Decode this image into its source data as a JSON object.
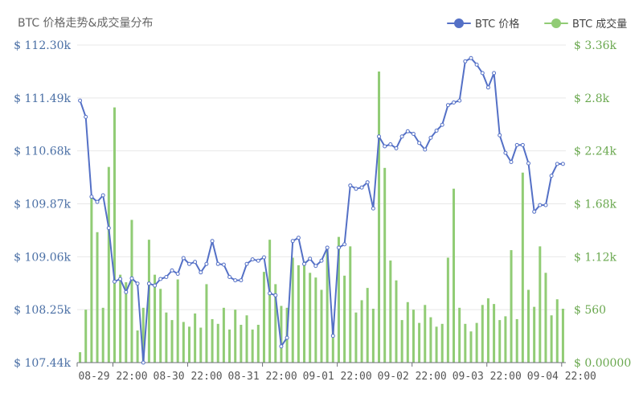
{
  "chart_data": {
    "type": "line+bar",
    "title": "BTC 价格走势&成交量分布",
    "legend": [
      {
        "name": "BTC 价格",
        "color": "#5470c6"
      },
      {
        "name": "BTC 成交量",
        "color": "#91cc75"
      }
    ],
    "legend_position": "top-right",
    "x_tick_labels": [
      "08-29 22:00",
      "08-30 22:00",
      "08-31 22:00",
      "09-01 22:00",
      "09-02 22:00",
      "09-03 22:00",
      "09-04 22:00"
    ],
    "y_left": {
      "ticks": [
        "$ 107.44k",
        "$ 108.25k",
        "$ 109.06k",
        "$ 109.87k",
        "$ 110.68k",
        "$ 111.49k",
        "$ 112.30k"
      ],
      "min": 107.44,
      "max": 112.3
    },
    "y_right": {
      "ticks": [
        "$ 0.00000",
        "$ 560",
        "$ 1.12k",
        "$ 1.68k",
        "$ 2.24k",
        "$ 2.8k",
        "$ 3.36k"
      ],
      "min": 0,
      "max": 3360
    },
    "grid": true,
    "series": [
      {
        "name": "BTC 价格",
        "type": "line",
        "unit": "k USD",
        "values": [
          111.45,
          111.2,
          109.98,
          109.9,
          110.0,
          109.5,
          108.68,
          108.72,
          108.52,
          108.73,
          108.65,
          107.44,
          108.65,
          108.62,
          108.72,
          108.75,
          108.85,
          108.8,
          109.04,
          108.95,
          108.98,
          108.82,
          108.95,
          109.3,
          108.95,
          108.94,
          108.75,
          108.7,
          108.7,
          108.95,
          109.02,
          109.0,
          109.05,
          108.5,
          108.47,
          107.69,
          107.82,
          109.3,
          109.35,
          108.95,
          109.03,
          108.92,
          109.0,
          109.2,
          107.85,
          109.2,
          109.25,
          110.15,
          110.1,
          110.12,
          110.2,
          109.8,
          110.9,
          110.75,
          110.78,
          110.72,
          110.9,
          110.98,
          110.94,
          110.8,
          110.7,
          110.88,
          110.99,
          111.08,
          111.38,
          111.42,
          111.45,
          112.05,
          112.1,
          112.0,
          111.87,
          111.65,
          111.87,
          110.92,
          110.65,
          110.51,
          110.77,
          110.77,
          110.49,
          109.75,
          109.85,
          109.85,
          110.3,
          110.48,
          110.48
        ]
      },
      {
        "name": "BTC 成交量",
        "type": "bar",
        "unit": "USD",
        "values": [
          110,
          560,
          1750,
          1380,
          580,
          2070,
          2700,
          930,
          850,
          1510,
          340,
          580,
          1300,
          930,
          780,
          530,
          450,
          880,
          430,
          380,
          520,
          370,
          830,
          460,
          410,
          580,
          350,
          560,
          400,
          500,
          350,
          400,
          960,
          1300,
          830,
          600,
          580,
          1110,
          1030,
          1070,
          950,
          900,
          770,
          1200,
          380,
          1330,
          920,
          1230,
          530,
          660,
          790,
          570,
          3080,
          2060,
          1080,
          870,
          450,
          640,
          560,
          420,
          610,
          480,
          380,
          410,
          1110,
          1840,
          580,
          410,
          330,
          420,
          610,
          680,
          620,
          450,
          490,
          1190,
          460,
          2010,
          770,
          590,
          1230,
          950,
          500,
          670,
          570
        ]
      }
    ]
  }
}
